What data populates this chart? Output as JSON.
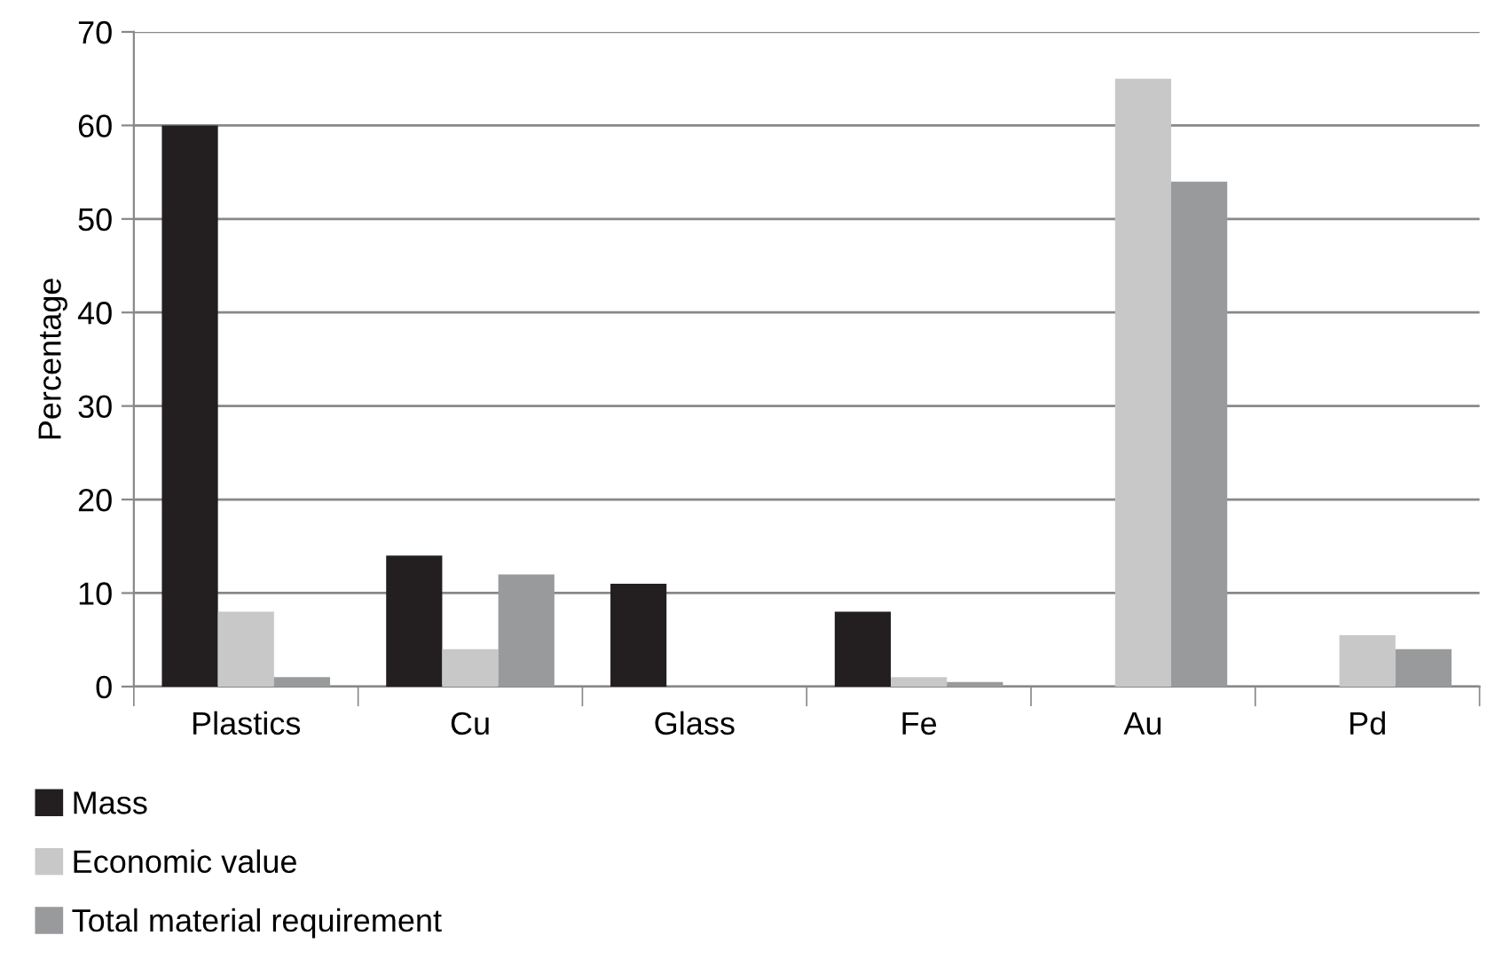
{
  "chart_data": {
    "type": "bar",
    "ylabel": "Percentage",
    "categories": [
      "Plastics",
      "Cu",
      "Glass",
      "Fe",
      "Au",
      "Pd"
    ],
    "series": [
      {
        "name": "Mass",
        "color": "#231f20",
        "values": [
          60,
          14,
          11,
          8,
          0,
          0
        ]
      },
      {
        "name": "Economic value",
        "color": "#c8c8c8",
        "values": [
          8,
          4,
          0,
          1,
          65,
          5.5
        ]
      },
      {
        "name": "Total material requirement",
        "color": "#999a9c",
        "values": [
          1,
          12,
          0,
          0.5,
          54,
          4
        ]
      }
    ],
    "ylim": [
      0,
      70
    ],
    "yticks": [
      0,
      10,
      20,
      30,
      40,
      50,
      60,
      70
    ],
    "grid": "y",
    "legend": "bottom left"
  }
}
